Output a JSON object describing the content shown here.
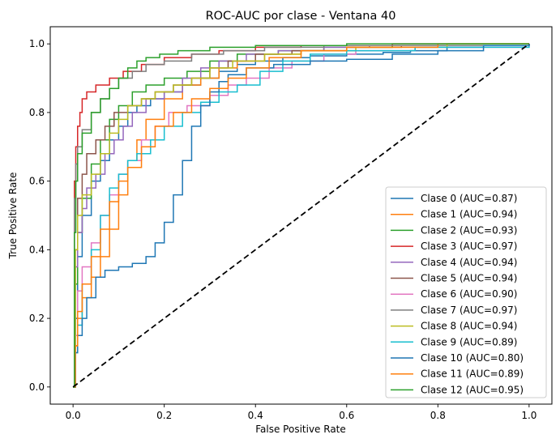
{
  "chart_data": {
    "type": "line",
    "title": "ROC-AUC por clase - Ventana 40",
    "xlabel": "False Positive Rate",
    "ylabel": "True Positive Rate",
    "xlim": [
      -0.05,
      1.05
    ],
    "ylim": [
      -0.05,
      1.05
    ],
    "xticks": [
      "0.0",
      "0.2",
      "0.4",
      "0.6",
      "0.8",
      "1.0"
    ],
    "yticks": [
      "0.0",
      "0.2",
      "0.4",
      "0.6",
      "0.8",
      "1.0"
    ],
    "grid": false,
    "legend_position": "lower-right",
    "diagonal": {
      "style": "dashed",
      "color": "#000000",
      "points": [
        [
          0,
          0
        ],
        [
          1,
          1
        ]
      ]
    },
    "series": [
      {
        "name": "Clase 0 (AUC=0.87)",
        "color": "#1f77b4",
        "points": [
          [
            0,
            0
          ],
          [
            0.005,
            0.2
          ],
          [
            0.01,
            0.38
          ],
          [
            0.02,
            0.5
          ],
          [
            0.04,
            0.6
          ],
          [
            0.06,
            0.66
          ],
          [
            0.08,
            0.72
          ],
          [
            0.1,
            0.76
          ],
          [
            0.12,
            0.8
          ],
          [
            0.14,
            0.82
          ],
          [
            0.17,
            0.84
          ],
          [
            0.2,
            0.86
          ],
          [
            0.24,
            0.88
          ],
          [
            0.28,
            0.9
          ],
          [
            0.32,
            0.92
          ],
          [
            0.36,
            0.94
          ],
          [
            0.4,
            0.95
          ],
          [
            0.46,
            0.96
          ],
          [
            0.52,
            0.965
          ],
          [
            0.6,
            0.97
          ],
          [
            0.68,
            0.975
          ],
          [
            0.74,
            0.98
          ],
          [
            0.82,
            0.99
          ],
          [
            0.9,
            0.995
          ],
          [
            1,
            1
          ]
        ]
      },
      {
        "name": "Clase 1 (AUC=0.94)",
        "color": "#ff7f0e",
        "points": [
          [
            0,
            0
          ],
          [
            0.005,
            0.12
          ],
          [
            0.01,
            0.2
          ],
          [
            0.02,
            0.26
          ],
          [
            0.04,
            0.32
          ],
          [
            0.06,
            0.38
          ],
          [
            0.08,
            0.46
          ],
          [
            0.1,
            0.56
          ],
          [
            0.12,
            0.66
          ],
          [
            0.14,
            0.72
          ],
          [
            0.16,
            0.78
          ],
          [
            0.2,
            0.84
          ],
          [
            0.24,
            0.88
          ],
          [
            0.28,
            0.9
          ],
          [
            0.32,
            0.93
          ],
          [
            0.36,
            0.95
          ],
          [
            0.42,
            0.97
          ],
          [
            0.5,
            0.98
          ],
          [
            0.6,
            0.99
          ],
          [
            0.7,
            0.995
          ],
          [
            1,
            1
          ]
        ]
      },
      {
        "name": "Clase 2 (AUC=0.93)",
        "color": "#2ca02c",
        "points": [
          [
            0,
            0
          ],
          [
            0.005,
            0.3
          ],
          [
            0.01,
            0.45
          ],
          [
            0.02,
            0.55
          ],
          [
            0.04,
            0.65
          ],
          [
            0.06,
            0.72
          ],
          [
            0.08,
            0.78
          ],
          [
            0.1,
            0.82
          ],
          [
            0.13,
            0.86
          ],
          [
            0.16,
            0.88
          ],
          [
            0.2,
            0.9
          ],
          [
            0.25,
            0.92
          ],
          [
            0.3,
            0.95
          ],
          [
            0.36,
            0.97
          ],
          [
            0.45,
            0.98
          ],
          [
            0.55,
            0.99
          ],
          [
            0.7,
            0.995
          ],
          [
            1,
            1
          ]
        ]
      },
      {
        "name": "Clase 3 (AUC=0.97)",
        "color": "#d62728",
        "points": [
          [
            0,
            0
          ],
          [
            0.003,
            0.6
          ],
          [
            0.006,
            0.7
          ],
          [
            0.01,
            0.76
          ],
          [
            0.015,
            0.8
          ],
          [
            0.02,
            0.84
          ],
          [
            0.03,
            0.86
          ],
          [
            0.05,
            0.88
          ],
          [
            0.08,
            0.9
          ],
          [
            0.11,
            0.92
          ],
          [
            0.15,
            0.94
          ],
          [
            0.2,
            0.96
          ],
          [
            0.26,
            0.97
          ],
          [
            0.32,
            0.98
          ],
          [
            0.4,
            0.99
          ],
          [
            0.5,
            0.995
          ],
          [
            0.7,
            1
          ],
          [
            1,
            1
          ]
        ]
      },
      {
        "name": "Clase 4 (AUC=0.94)",
        "color": "#9467bd",
        "points": [
          [
            0,
            0
          ],
          [
            0.005,
            0.35
          ],
          [
            0.01,
            0.45
          ],
          [
            0.02,
            0.52
          ],
          [
            0.03,
            0.58
          ],
          [
            0.05,
            0.62
          ],
          [
            0.07,
            0.68
          ],
          [
            0.09,
            0.72
          ],
          [
            0.11,
            0.76
          ],
          [
            0.13,
            0.8
          ],
          [
            0.16,
            0.84
          ],
          [
            0.2,
            0.86
          ],
          [
            0.24,
            0.9
          ],
          [
            0.28,
            0.93
          ],
          [
            0.32,
            0.95
          ],
          [
            0.38,
            0.97
          ],
          [
            0.45,
            0.98
          ],
          [
            0.55,
            0.99
          ],
          [
            0.65,
            0.995
          ],
          [
            1,
            1
          ]
        ]
      },
      {
        "name": "Clase 5 (AUC=0.94)",
        "color": "#8c564b",
        "points": [
          [
            0,
            0
          ],
          [
            0.005,
            0.4
          ],
          [
            0.01,
            0.55
          ],
          [
            0.02,
            0.62
          ],
          [
            0.03,
            0.68
          ],
          [
            0.05,
            0.72
          ],
          [
            0.07,
            0.76
          ],
          [
            0.09,
            0.8
          ],
          [
            0.12,
            0.82
          ],
          [
            0.15,
            0.84
          ],
          [
            0.18,
            0.86
          ],
          [
            0.22,
            0.88
          ],
          [
            0.26,
            0.9
          ],
          [
            0.3,
            0.93
          ],
          [
            0.34,
            0.95
          ],
          [
            0.4,
            0.97
          ],
          [
            0.48,
            0.98
          ],
          [
            0.6,
            0.99
          ],
          [
            0.72,
            0.995
          ],
          [
            1,
            1
          ]
        ]
      },
      {
        "name": "Clase 6 (AUC=0.90)",
        "color": "#e377c2",
        "points": [
          [
            0,
            0
          ],
          [
            0.005,
            0.15
          ],
          [
            0.01,
            0.28
          ],
          [
            0.02,
            0.35
          ],
          [
            0.04,
            0.42
          ],
          [
            0.06,
            0.5
          ],
          [
            0.08,
            0.56
          ],
          [
            0.1,
            0.62
          ],
          [
            0.12,
            0.66
          ],
          [
            0.15,
            0.72
          ],
          [
            0.18,
            0.76
          ],
          [
            0.21,
            0.8
          ],
          [
            0.25,
            0.82
          ],
          [
            0.3,
            0.85
          ],
          [
            0.34,
            0.88
          ],
          [
            0.38,
            0.9
          ],
          [
            0.43,
            0.93
          ],
          [
            0.48,
            0.95
          ],
          [
            0.55,
            0.97
          ],
          [
            0.62,
            0.98
          ],
          [
            0.75,
            0.99
          ],
          [
            1,
            1
          ]
        ]
      },
      {
        "name": "Clase 7 (AUC=0.97)",
        "color": "#7f7f7f",
        "points": [
          [
            0,
            0
          ],
          [
            0.003,
            0.55
          ],
          [
            0.006,
            0.65
          ],
          [
            0.01,
            0.7
          ],
          [
            0.02,
            0.75
          ],
          [
            0.04,
            0.8
          ],
          [
            0.06,
            0.84
          ],
          [
            0.08,
            0.87
          ],
          [
            0.1,
            0.9
          ],
          [
            0.13,
            0.92
          ],
          [
            0.16,
            0.94
          ],
          [
            0.2,
            0.95
          ],
          [
            0.26,
            0.97
          ],
          [
            0.33,
            0.98
          ],
          [
            0.42,
            0.99
          ],
          [
            0.55,
            0.995
          ],
          [
            1,
            1
          ]
        ]
      },
      {
        "name": "Clase 8 (AUC=0.94)",
        "color": "#bcbd22",
        "points": [
          [
            0,
            0
          ],
          [
            0.005,
            0.4
          ],
          [
            0.01,
            0.5
          ],
          [
            0.02,
            0.56
          ],
          [
            0.04,
            0.62
          ],
          [
            0.06,
            0.68
          ],
          [
            0.08,
            0.74
          ],
          [
            0.1,
            0.78
          ],
          [
            0.12,
            0.82
          ],
          [
            0.15,
            0.84
          ],
          [
            0.18,
            0.86
          ],
          [
            0.22,
            0.88
          ],
          [
            0.26,
            0.9
          ],
          [
            0.3,
            0.93
          ],
          [
            0.35,
            0.95
          ],
          [
            0.42,
            0.97
          ],
          [
            0.5,
            0.98
          ],
          [
            0.62,
            0.99
          ],
          [
            0.82,
            1
          ],
          [
            1,
            1
          ]
        ]
      },
      {
        "name": "Clase 9 (AUC=0.89)",
        "color": "#17becf",
        "points": [
          [
            0,
            0
          ],
          [
            0.005,
            0.1
          ],
          [
            0.01,
            0.18
          ],
          [
            0.02,
            0.3
          ],
          [
            0.04,
            0.4
          ],
          [
            0.06,
            0.5
          ],
          [
            0.08,
            0.58
          ],
          [
            0.1,
            0.62
          ],
          [
            0.12,
            0.66
          ],
          [
            0.14,
            0.68
          ],
          [
            0.17,
            0.72
          ],
          [
            0.2,
            0.76
          ],
          [
            0.24,
            0.8
          ],
          [
            0.28,
            0.83
          ],
          [
            0.32,
            0.86
          ],
          [
            0.36,
            0.88
          ],
          [
            0.41,
            0.92
          ],
          [
            0.46,
            0.95
          ],
          [
            0.52,
            0.97
          ],
          [
            0.6,
            0.98
          ],
          [
            0.75,
            0.99
          ],
          [
            1,
            1
          ]
        ]
      },
      {
        "name": "Clase 10 (AUC=0.80)",
        "color": "#1f77b4",
        "points": [
          [
            0,
            0
          ],
          [
            0.005,
            0.1
          ],
          [
            0.01,
            0.15
          ],
          [
            0.02,
            0.2
          ],
          [
            0.03,
            0.26
          ],
          [
            0.05,
            0.32
          ],
          [
            0.07,
            0.34
          ],
          [
            0.1,
            0.35
          ],
          [
            0.13,
            0.36
          ],
          [
            0.16,
            0.38
          ],
          [
            0.18,
            0.42
          ],
          [
            0.2,
            0.48
          ],
          [
            0.22,
            0.56
          ],
          [
            0.24,
            0.66
          ],
          [
            0.26,
            0.76
          ],
          [
            0.28,
            0.82
          ],
          [
            0.3,
            0.86
          ],
          [
            0.32,
            0.89
          ],
          [
            0.34,
            0.91
          ],
          [
            0.38,
            0.93
          ],
          [
            0.44,
            0.94
          ],
          [
            0.52,
            0.95
          ],
          [
            0.6,
            0.955
          ],
          [
            0.7,
            0.97
          ],
          [
            0.8,
            0.98
          ],
          [
            0.9,
            0.995
          ],
          [
            1,
            1
          ]
        ]
      },
      {
        "name": "Clase 11 (AUC=0.89)",
        "color": "#ff7f0e",
        "points": [
          [
            0,
            0
          ],
          [
            0.005,
            0.12
          ],
          [
            0.01,
            0.22
          ],
          [
            0.02,
            0.3
          ],
          [
            0.04,
            0.38
          ],
          [
            0.06,
            0.46
          ],
          [
            0.08,
            0.54
          ],
          [
            0.1,
            0.6
          ],
          [
            0.12,
            0.64
          ],
          [
            0.15,
            0.7
          ],
          [
            0.18,
            0.76
          ],
          [
            0.22,
            0.8
          ],
          [
            0.26,
            0.84
          ],
          [
            0.3,
            0.87
          ],
          [
            0.34,
            0.9
          ],
          [
            0.38,
            0.93
          ],
          [
            0.43,
            0.96
          ],
          [
            0.5,
            0.98
          ],
          [
            0.6,
            0.99
          ],
          [
            0.8,
            1
          ],
          [
            1,
            1
          ]
        ]
      },
      {
        "name": "Clase 12 (AUC=0.95)",
        "color": "#2ca02c",
        "points": [
          [
            0,
            0
          ],
          [
            0.003,
            0.45
          ],
          [
            0.006,
            0.6
          ],
          [
            0.01,
            0.68
          ],
          [
            0.02,
            0.74
          ],
          [
            0.04,
            0.8
          ],
          [
            0.06,
            0.84
          ],
          [
            0.08,
            0.87
          ],
          [
            0.1,
            0.9
          ],
          [
            0.12,
            0.93
          ],
          [
            0.14,
            0.95
          ],
          [
            0.16,
            0.96
          ],
          [
            0.19,
            0.97
          ],
          [
            0.23,
            0.98
          ],
          [
            0.3,
            0.99
          ],
          [
            0.4,
            0.995
          ],
          [
            0.6,
            1
          ],
          [
            1,
            1
          ]
        ]
      }
    ]
  }
}
